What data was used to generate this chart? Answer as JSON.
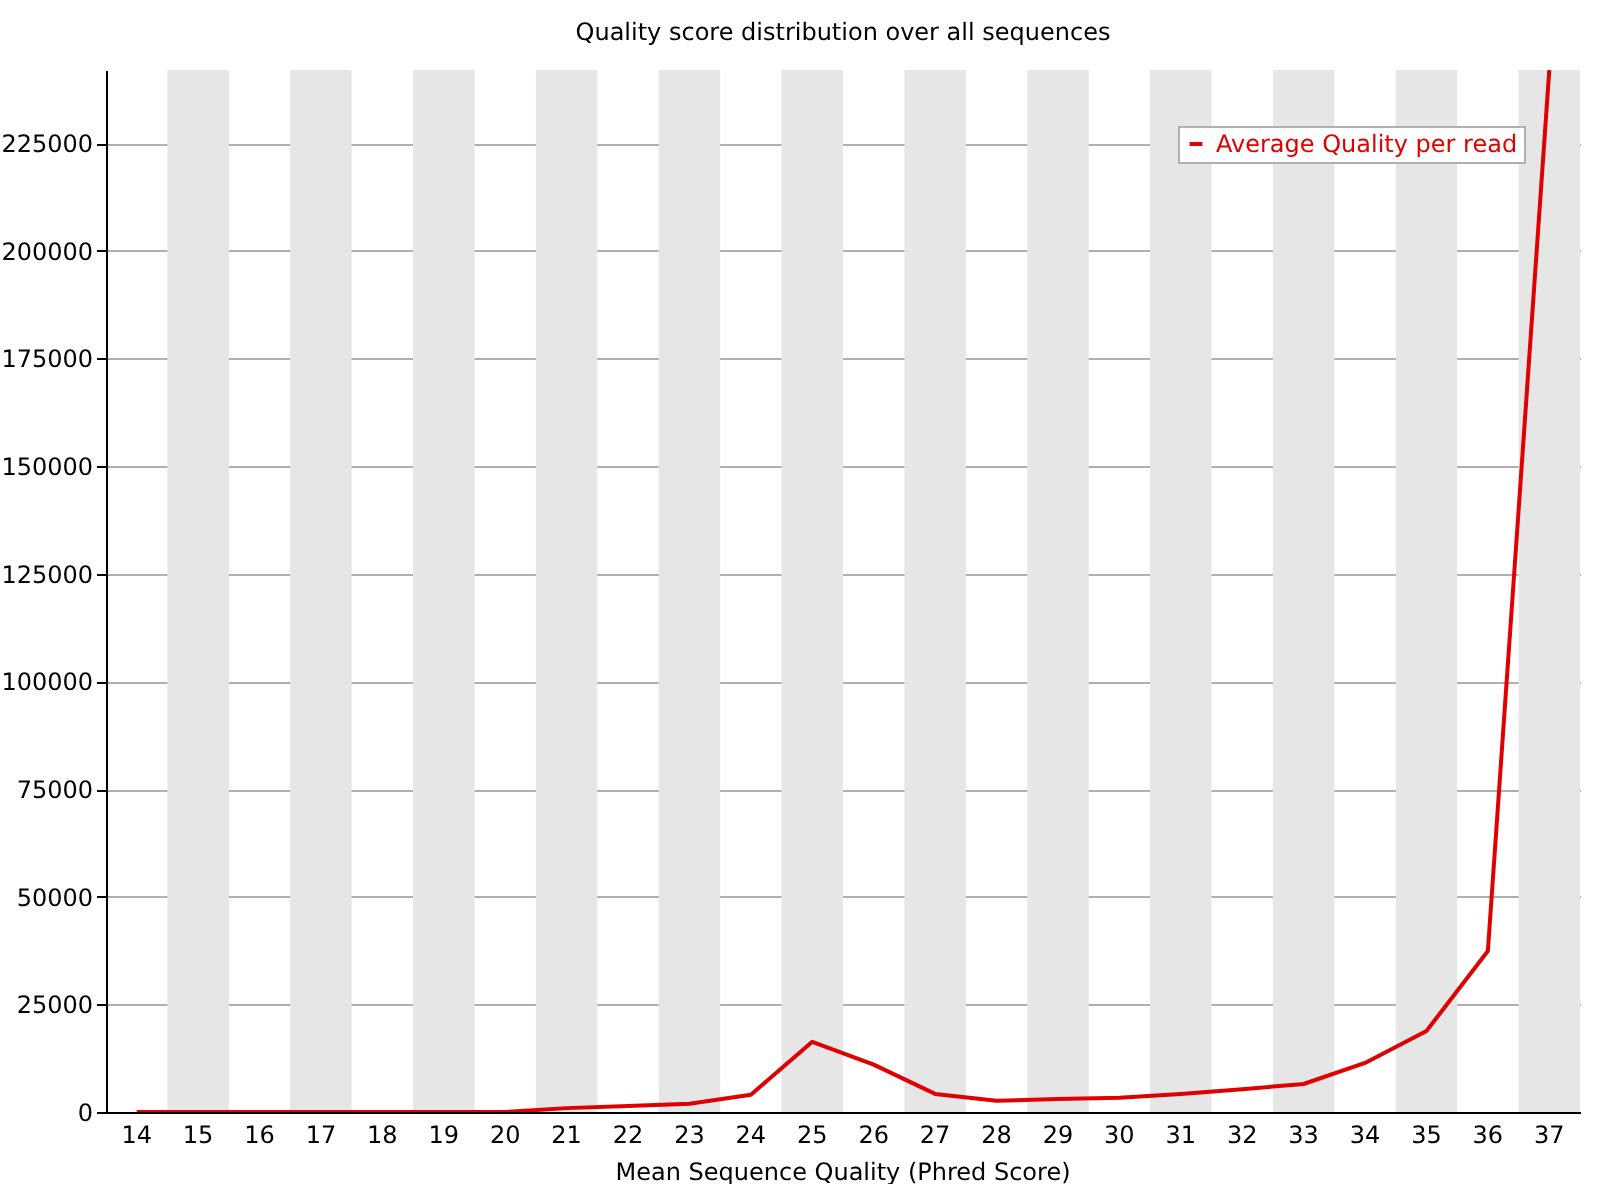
{
  "chart_data": {
    "type": "line",
    "title": "Quality score distribution over all sequences",
    "xlabel": "Mean Sequence Quality (Phred Score)",
    "categories": [
      "14",
      "15",
      "16",
      "17",
      "18",
      "19",
      "20",
      "21",
      "22",
      "23",
      "24",
      "25",
      "26",
      "27",
      "28",
      "29",
      "30",
      "31",
      "32",
      "33",
      "34",
      "35",
      "36",
      "37"
    ],
    "series": [
      {
        "name": "Average Quality per read",
        "color": "#e00000",
        "values": [
          0,
          0,
          0,
          0,
          0,
          0,
          0,
          900,
          1400,
          1900,
          4000,
          16300,
          11000,
          4200,
          2600,
          3000,
          3300,
          4200,
          5300,
          6500,
          11400,
          18800,
          37400,
          242000
        ]
      }
    ],
    "ylim": [
      0,
      242000
    ],
    "yticks": [
      0,
      25000,
      50000,
      75000,
      100000,
      125000,
      150000,
      175000,
      200000,
      225000
    ],
    "bands": [
      {
        "axis": "x",
        "from": "15",
        "to": "15",
        "color": "#e6e6e6"
      },
      {
        "axis": "x",
        "from": "17",
        "to": "17",
        "color": "#e6e6e6"
      },
      {
        "axis": "x",
        "from": "19",
        "to": "19",
        "color": "#e6e6e6"
      },
      {
        "axis": "x",
        "from": "21",
        "to": "21",
        "color": "#e6e6e6"
      },
      {
        "axis": "x",
        "from": "23",
        "to": "23",
        "color": "#e6e6e6"
      },
      {
        "axis": "x",
        "from": "25",
        "to": "25",
        "color": "#e6e6e6"
      },
      {
        "axis": "x",
        "from": "27",
        "to": "27",
        "color": "#e6e6e6"
      },
      {
        "axis": "x",
        "from": "29",
        "to": "29",
        "color": "#e6e6e6"
      },
      {
        "axis": "x",
        "from": "31",
        "to": "31",
        "color": "#e6e6e6"
      },
      {
        "axis": "x",
        "from": "33",
        "to": "33",
        "color": "#e6e6e6"
      },
      {
        "axis": "x",
        "from": "35",
        "to": "35",
        "color": "#e6e6e6"
      },
      {
        "axis": "x",
        "from": "37",
        "to": "37",
        "color": "#e6e6e6"
      }
    ],
    "grid": "y",
    "legend": "top right",
    "marker": "none",
    "line_style": "solid"
  }
}
